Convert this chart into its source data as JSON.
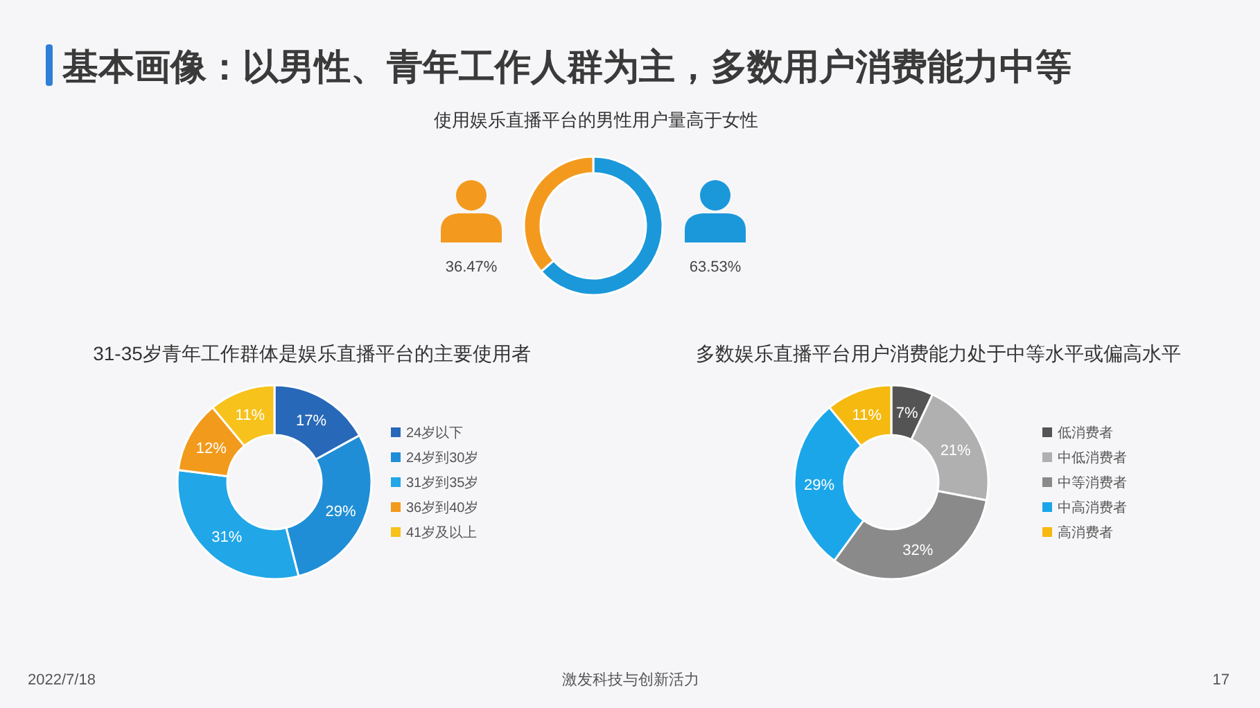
{
  "chart_data": [
    {
      "type": "donut",
      "title": "基本画像：以男性、青年工作人群为主，多数用户消费能力中等",
      "subtitle": "使用娱乐直播平台的男性用户量高于女性",
      "categories": [
        null,
        null
      ],
      "values": [
        63.53,
        36.47
      ],
      "colors": [
        "#1b98da",
        "#f39a1e"
      ],
      "value_labels": [
        "63.53%",
        "36.47%"
      ],
      "annotations": [
        "2022/7/18",
        "激发科技与创新活力",
        "17"
      ]
    },
    {
      "type": "donut",
      "title": "31-35岁青年工作群体是娱乐直播平台的主要使用者",
      "categories": [
        "24岁以下",
        "24岁到30岁",
        "31岁到35岁",
        "36岁到40岁",
        "41岁及以上"
      ],
      "values": [
        17,
        29,
        31,
        12,
        11
      ],
      "colors": [
        "#2868b8",
        "#1f8ed6",
        "#21a6e8",
        "#f29a1c",
        "#f6c21b"
      ],
      "value_labels": [
        "17%",
        "29%",
        "31%",
        "12%",
        "11%"
      ],
      "legend": "right"
    },
    {
      "type": "donut",
      "title": "多数娱乐直播平台用户消费能力处于中等水平或偏高水平",
      "categories": [
        "低消费者",
        "中低消费者",
        "中等消费者",
        "中高消费者",
        "高消费者"
      ],
      "values": [
        7,
        21,
        32,
        29,
        11
      ],
      "colors": [
        "#545454",
        "#b0b0b0",
        "#8a8a8a",
        "#1ba6ea",
        "#f5b90f"
      ],
      "value_labels": [
        "7%",
        "21%",
        "32%",
        "29%",
        "11%"
      ],
      "legend": "right"
    }
  ]
}
